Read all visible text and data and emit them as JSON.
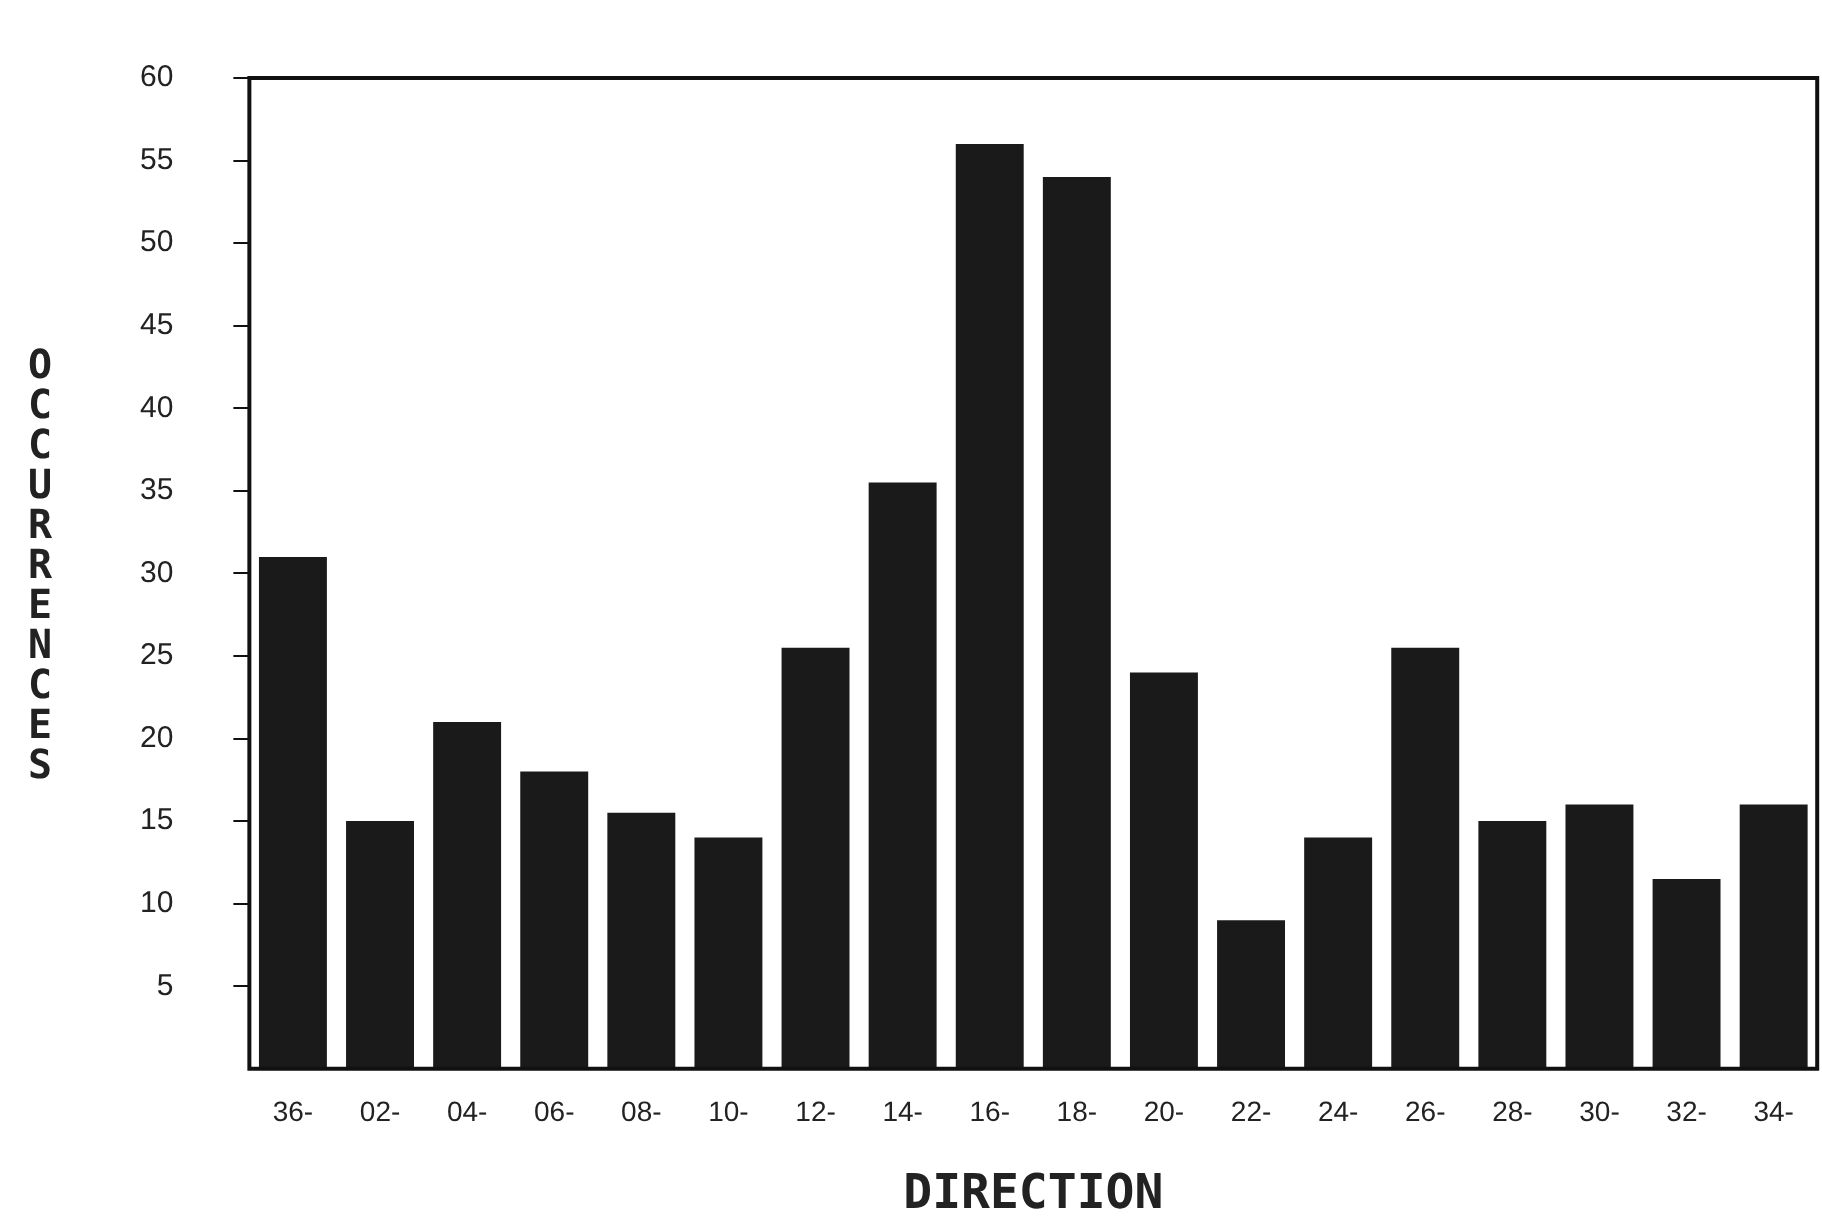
{
  "chart_data": {
    "type": "bar",
    "xlabel": "DIRECTION",
    "ylabel": "OCCURRENCES",
    "categories": [
      "36-",
      "02-",
      "04-",
      "06-",
      "08-",
      "10-",
      "12-",
      "14-",
      "16-",
      "18-",
      "20-",
      "22-",
      "24-",
      "26-",
      "28-",
      "30-",
      "32-",
      "34-"
    ],
    "values": [
      31,
      15,
      21,
      18,
      15.5,
      14,
      25.5,
      35.5,
      56,
      54,
      24,
      9,
      14,
      25.5,
      15,
      16,
      11.5,
      16
    ],
    "color": "#1a1a1a",
    "ylim": [
      0,
      60
    ],
    "yticks": [
      5,
      10,
      15,
      20,
      25,
      30,
      35,
      40,
      45,
      50,
      55,
      60
    ],
    "grid": false,
    "legend": false
  }
}
